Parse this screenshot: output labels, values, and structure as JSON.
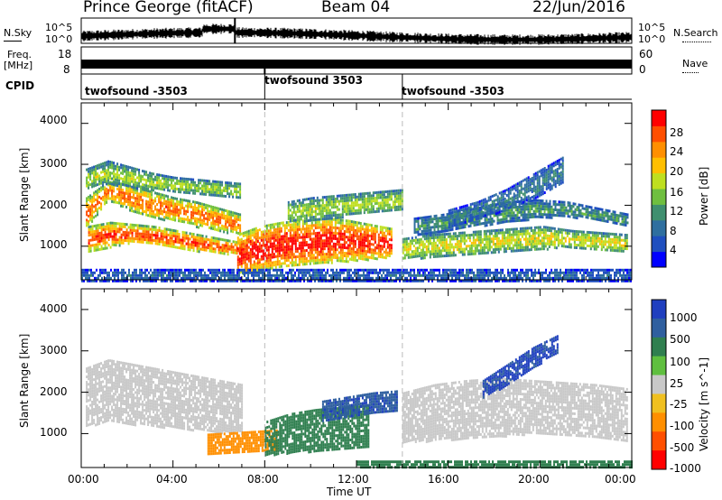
{
  "header": {
    "station": "Prince George (fitACF)",
    "beam": "Beam 04",
    "date": "22/Jun/2016"
  },
  "left_labels": {
    "nsky": "N.Sky",
    "freq": "Freq.",
    "freq_unit": "[MHz]",
    "cpid": "CPID"
  },
  "right_labels": {
    "nsearch": "N.Search",
    "nave": "Nave"
  },
  "noise_axis": {
    "left_top": "10^5",
    "left_bottom": "10^0",
    "right_top": "10^5",
    "right_bottom": "10^0"
  },
  "freq_axis": {
    "left_ticks": [
      "18",
      "8"
    ],
    "right_ticks": [
      "60",
      "0"
    ]
  },
  "cpid_segments": [
    {
      "label": "twofsound -3503",
      "start_hour": 0
    },
    {
      "label": "twofsound 3503",
      "start_hour": 8
    },
    {
      "label": "twofsound -3503",
      "start_hour": 14
    }
  ],
  "colors": {
    "power_scale": [
      "#0000ff",
      "#1f4fbf",
      "#2f6f9f",
      "#3f8f6f",
      "#6fbf3f",
      "#bfdf1f",
      "#ffbf00",
      "#ff8f00",
      "#ff4f00",
      "#ff0000"
    ],
    "velocity_scale": [
      "#1f3fbf",
      "#2f5f9f",
      "#2f7f4f",
      "#5fbf3f",
      "#c8c8c8",
      "#f0c020",
      "#ff8f00",
      "#ff4f00",
      "#ff0000"
    ]
  },
  "chart_data": [
    {
      "type": "heatmap",
      "name": "power",
      "ylabel": "Slant Range [km]",
      "xlim": [
        0,
        24
      ],
      "ylim": [
        180,
        4500
      ],
      "yticks": [
        "1000",
        "2000",
        "3000",
        "4000"
      ],
      "colorbar": {
        "label": "Power [dB]",
        "ticks": [
          "4",
          "8",
          "12",
          "16",
          "20",
          "24",
          "28"
        ],
        "range": [
          0,
          30
        ]
      },
      "bands": [
        {
          "x0": 0.2,
          "x1": 6.9,
          "y0": [
            1450,
            2150,
            1900,
            1700,
            1650,
            1500,
            1400,
            1300
          ],
          "y1": [
            2200,
            2600,
            2500,
            2350,
            2200,
            2100,
            1950,
            1800
          ],
          "value": 22
        },
        {
          "x0": 0.2,
          "x1": 6.9,
          "y0": [
            2400,
            2550,
            2450,
            2400,
            2350,
            2300,
            2250,
            2200
          ],
          "y1": [
            2900,
            3100,
            2950,
            2800,
            2700,
            2650,
            2600,
            2550
          ],
          "value": 14
        },
        {
          "x0": 0.3,
          "x1": 7.0,
          "y0": [
            900,
            1000,
            1100,
            1050,
            950,
            900,
            850,
            800
          ],
          "y1": [
            1500,
            1600,
            1550,
            1500,
            1400,
            1300,
            1200,
            1100
          ],
          "value": 24
        },
        {
          "x0": 6.8,
          "x1": 13.5,
          "y0": [
            300,
            400,
            500,
            550,
            600,
            650,
            700,
            750
          ],
          "y1": [
            1300,
            1500,
            1600,
            1650,
            1700,
            1650,
            1550,
            1450
          ],
          "value": 26
        },
        {
          "x0": 9.0,
          "x1": 14.0,
          "y0": [
            1600,
            1650,
            1700,
            1800,
            1850,
            1900
          ],
          "y1": [
            2100,
            2200,
            2250,
            2300,
            2350,
            2400
          ],
          "value": 14
        },
        {
          "x0": 14.0,
          "x1": 23.8,
          "y0": [
            700,
            750,
            800,
            850,
            900,
            950,
            1000,
            900,
            850
          ],
          "y1": [
            1200,
            1300,
            1350,
            1400,
            1450,
            1500,
            1400,
            1350,
            1300
          ],
          "value": 16
        },
        {
          "x0": 14.5,
          "x1": 23.8,
          "y0": [
            1300,
            1400,
            1500,
            1600,
            1700,
            1750,
            1650,
            1500
          ],
          "y1": [
            1700,
            1800,
            1950,
            2100,
            2150,
            2100,
            1950,
            1800
          ],
          "value": 10
        },
        {
          "x0": 16.0,
          "x1": 21.0,
          "y0": [
            1500,
            1700,
            1900,
            2200,
            2600
          ],
          "y1": [
            1900,
            2100,
            2400,
            2800,
            3200
          ],
          "value": 8
        },
        {
          "x0": 0.0,
          "x1": 24.0,
          "y0": [
            180
          ],
          "y1": [
            450
          ],
          "value": 6
        }
      ]
    },
    {
      "type": "heatmap",
      "name": "velocity",
      "ylabel": "Slant Range [km]",
      "xlabel": "Time UT",
      "xlim": [
        0,
        24
      ],
      "ylim": [
        180,
        4500
      ],
      "xticks": [
        "00:00",
        "04:00",
        "08:00",
        "12:00",
        "16:00",
        "20:00",
        "00:00"
      ],
      "yticks": [
        "1000",
        "2000",
        "3000",
        "4000"
      ],
      "colorbar": {
        "label": "Velocity [m s^-1]",
        "ticks": [
          "1000",
          "500",
          "100",
          "25",
          "-25",
          "-100",
          "-500",
          "-1000"
        ]
      },
      "bands": [
        {
          "x0": 0.2,
          "x1": 7.0,
          "y0": [
            1200,
            1300,
            1250,
            1200,
            1150,
            1100,
            1050,
            1000
          ],
          "y1": [
            2600,
            2800,
            2700,
            2600,
            2500,
            2400,
            2300,
            2200
          ],
          "value": 0
        },
        {
          "x0": 5.5,
          "x1": 8.5,
          "y0": [
            500,
            550,
            600
          ],
          "y1": [
            1000,
            1050,
            1100
          ],
          "value": -150
        },
        {
          "x0": 8.0,
          "x1": 12.5,
          "y0": [
            500,
            550,
            600,
            650,
            700
          ],
          "y1": [
            1300,
            1500,
            1600,
            1650,
            1700
          ],
          "value": 120
        },
        {
          "x0": 10.5,
          "x1": 13.8,
          "y0": [
            1300,
            1400,
            1500,
            1550
          ],
          "y1": [
            1800,
            1900,
            2000,
            2050
          ],
          "value": 600
        },
        {
          "x0": 14.0,
          "x1": 23.8,
          "y0": [
            800,
            850,
            900,
            950,
            1000,
            950,
            900,
            850
          ],
          "y1": [
            2000,
            2200,
            2300,
            2350,
            2300,
            2250,
            2200,
            2100
          ],
          "value": 0
        },
        {
          "x0": 17.5,
          "x1": 20.8,
          "y0": [
            1900,
            2200,
            2600,
            3000
          ],
          "y1": [
            2300,
            2700,
            3100,
            3400
          ],
          "value": 800
        },
        {
          "x0": 12.0,
          "x1": 24.0,
          "y0": [
            180
          ],
          "y1": [
            350
          ],
          "value": 90
        }
      ]
    }
  ]
}
